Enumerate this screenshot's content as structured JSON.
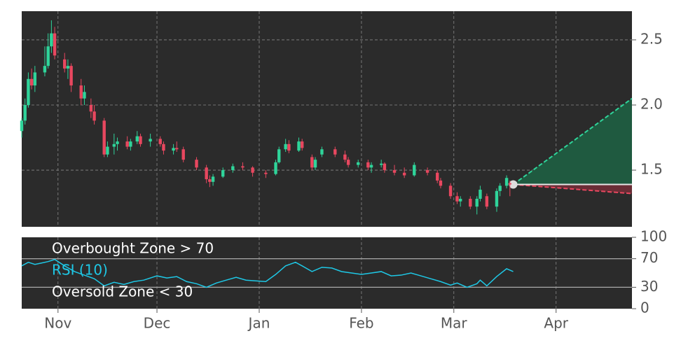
{
  "chart_data": [
    {
      "type": "candlestick",
      "up_color": "#2fd49a",
      "down_color": "#e8475f",
      "grid": true,
      "x": [
        -11,
        -10,
        -9,
        -8,
        -7,
        -4,
        -3,
        -2,
        -1,
        2,
        3,
        4,
        7,
        8,
        10,
        11,
        14,
        15,
        17,
        18,
        21,
        22,
        24,
        25,
        28,
        31,
        32,
        35,
        36,
        38,
        42,
        45,
        46,
        47,
        50,
        53,
        56,
        59,
        63,
        66,
        67,
        69,
        70,
        73,
        74,
        77,
        78,
        80,
        84,
        87,
        88,
        91,
        94,
        95,
        98,
        99,
        102,
        105,
        108,
        112,
        115,
        116,
        119,
        121,
        122,
        125,
        127,
        128,
        130,
        133,
        134,
        136,
        137
      ],
      "open": [
        1.8,
        1.88,
        2.0,
        2.2,
        2.15,
        2.25,
        2.3,
        2.45,
        2.55,
        2.35,
        2.28,
        2.3,
        2.15,
        2.05,
        2.0,
        1.95,
        1.88,
        1.62,
        1.68,
        1.7,
        1.72,
        1.68,
        1.72,
        1.76,
        1.72,
        1.74,
        1.7,
        1.65,
        1.67,
        1.66,
        1.58,
        1.52,
        1.43,
        1.41,
        1.45,
        1.5,
        1.53,
        1.52,
        1.48,
        1.47,
        1.56,
        1.66,
        1.7,
        1.65,
        1.72,
        1.6,
        1.52,
        1.62,
        1.66,
        1.62,
        1.58,
        1.54,
        1.56,
        1.52,
        1.54,
        1.55,
        1.5,
        1.48,
        1.46,
        1.5,
        1.48,
        1.42,
        1.38,
        1.3,
        1.26,
        1.28,
        1.22,
        1.28,
        1.3,
        1.22,
        1.34,
        1.38,
        1.4
      ],
      "high": [
        1.9,
        2.05,
        2.25,
        2.28,
        2.3,
        2.45,
        2.55,
        2.65,
        2.6,
        2.4,
        2.35,
        2.32,
        2.2,
        2.15,
        2.05,
        2.0,
        1.9,
        1.72,
        1.78,
        1.75,
        1.76,
        1.74,
        1.8,
        1.78,
        1.78,
        1.76,
        1.72,
        1.7,
        1.72,
        1.68,
        1.6,
        1.54,
        1.46,
        1.47,
        1.52,
        1.55,
        1.56,
        1.53,
        1.5,
        1.58,
        1.68,
        1.74,
        1.73,
        1.75,
        1.74,
        1.62,
        1.6,
        1.68,
        1.68,
        1.65,
        1.6,
        1.58,
        1.58,
        1.56,
        1.58,
        1.56,
        1.54,
        1.52,
        1.56,
        1.52,
        1.5,
        1.44,
        1.4,
        1.33,
        1.3,
        1.3,
        1.3,
        1.38,
        1.32,
        1.36,
        1.4,
        1.46,
        1.42
      ],
      "low": [
        1.75,
        1.85,
        1.98,
        2.12,
        2.1,
        2.22,
        2.28,
        2.4,
        2.35,
        2.25,
        2.2,
        2.1,
        2.0,
        2.0,
        1.9,
        1.85,
        1.6,
        1.6,
        1.62,
        1.65,
        1.66,
        1.65,
        1.7,
        1.68,
        1.68,
        1.68,
        1.62,
        1.62,
        1.64,
        1.56,
        1.5,
        1.4,
        1.37,
        1.38,
        1.44,
        1.48,
        1.5,
        1.45,
        1.44,
        1.46,
        1.55,
        1.64,
        1.63,
        1.64,
        1.65,
        1.5,
        1.5,
        1.6,
        1.6,
        1.56,
        1.52,
        1.52,
        1.5,
        1.48,
        1.52,
        1.48,
        1.46,
        1.44,
        1.45,
        1.46,
        1.4,
        1.36,
        1.28,
        1.24,
        1.22,
        1.2,
        1.16,
        1.26,
        1.2,
        1.18,
        1.3,
        1.36,
        1.3
      ],
      "close": [
        1.88,
        2.0,
        2.2,
        2.15,
        2.25,
        2.3,
        2.45,
        2.55,
        2.38,
        2.28,
        2.3,
        2.15,
        2.05,
        2.1,
        1.95,
        1.88,
        1.62,
        1.68,
        1.7,
        1.72,
        1.68,
        1.72,
        1.76,
        1.7,
        1.74,
        1.7,
        1.65,
        1.67,
        1.66,
        1.58,
        1.52,
        1.43,
        1.41,
        1.45,
        1.5,
        1.53,
        1.52,
        1.48,
        1.47,
        1.56,
        1.66,
        1.7,
        1.65,
        1.72,
        1.67,
        1.52,
        1.58,
        1.66,
        1.62,
        1.58,
        1.54,
        1.56,
        1.52,
        1.54,
        1.55,
        1.5,
        1.48,
        1.46,
        1.54,
        1.48,
        1.42,
        1.38,
        1.3,
        1.26,
        1.28,
        1.22,
        1.28,
        1.35,
        1.22,
        1.34,
        1.38,
        1.44,
        1.39
      ],
      "forecast": {
        "x": [
          138,
          174
        ],
        "upper": [
          1.39,
          2.05
        ],
        "center": [
          1.39,
          1.39
        ],
        "lower": [
          1.39,
          1.32
        ]
      },
      "xlim": [
        -11,
        174
      ],
      "ylim": [
        1.065,
        2.72
      ],
      "yticks": [
        1.5,
        {
          "value": 2,
          "label": "2.0"
        },
        2.5
      ],
      "xticks": [
        {
          "value": 0,
          "label": "Nov"
        },
        {
          "value": 30,
          "label": "Dec"
        },
        {
          "value": 61,
          "label": "Jan"
        },
        {
          "value": 92,
          "label": "Feb"
        },
        {
          "value": 120,
          "label": "Mar"
        },
        {
          "value": 151,
          "label": "Apr"
        }
      ]
    },
    {
      "type": "line",
      "xlim": [
        -11,
        174
      ],
      "ylim": [
        0,
        100
      ],
      "yticks": [
        0,
        30,
        70,
        100
      ],
      "zones": [
        {
          "label": "Overbought Zone > 70",
          "value": 70
        },
        {
          "label": "Oversold Zone < 30",
          "value": 30
        }
      ],
      "series": [
        {
          "name": "RSI (10)",
          "color": "#1ec8e6",
          "x": [
            -11,
            -9,
            -7,
            -5,
            -3,
            -1,
            2,
            5,
            8,
            11,
            14,
            17,
            20,
            23,
            26,
            30,
            33,
            36,
            39,
            42,
            45,
            48,
            51,
            54,
            57,
            60,
            63,
            66,
            69,
            72,
            74,
            77,
            80,
            83,
            86,
            89,
            92,
            95,
            98,
            101,
            104,
            107,
            110,
            113,
            116,
            119,
            121,
            124,
            127,
            128,
            130,
            133,
            136,
            138
          ],
          "values": [
            60,
            65,
            62,
            64,
            66,
            69,
            60,
            52,
            47,
            42,
            32,
            37,
            34,
            38,
            40,
            46,
            43,
            45,
            38,
            35,
            30,
            36,
            40,
            44,
            40,
            39,
            38,
            48,
            60,
            65,
            60,
            52,
            58,
            57,
            52,
            50,
            48,
            50,
            52,
            46,
            47,
            50,
            46,
            42,
            38,
            33,
            36,
            30,
            35,
            40,
            32,
            45,
            56,
            52
          ]
        }
      ]
    }
  ]
}
